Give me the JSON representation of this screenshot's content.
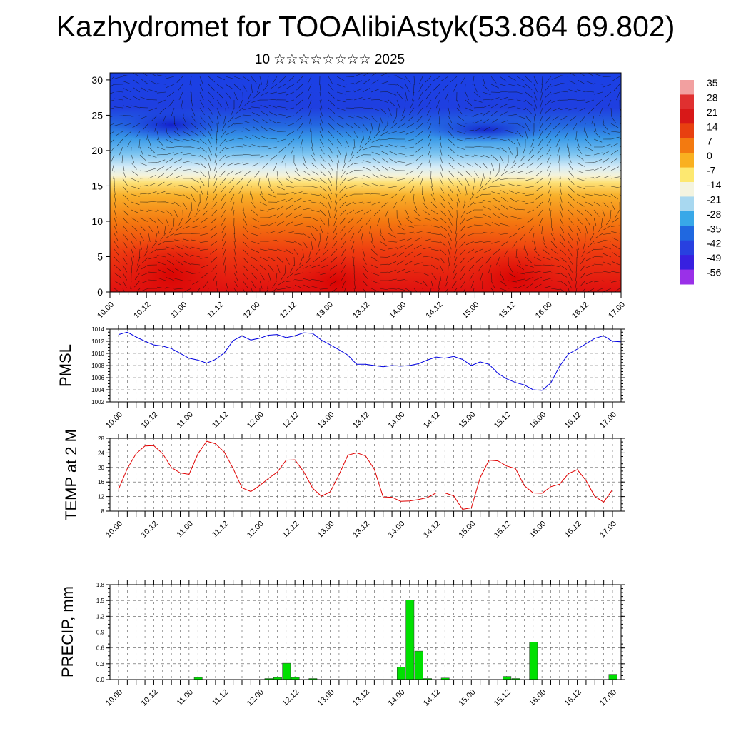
{
  "title": "Kazhydromet for TOOAlibiAstyk(53.864 69.802)",
  "subtitle": "10 ☆☆☆☆☆☆☆☆ 2025",
  "time_ticks": [
    "10.00",
    "10.12",
    "11.00",
    "11.12",
    "12.00",
    "12.12",
    "13.00",
    "13.12",
    "14.00",
    "14.12",
    "15.00",
    "15.12",
    "16.00",
    "16.12",
    "17.00"
  ],
  "chart_data": [
    {
      "type": "heatmap",
      "name": "vertical temperature cross-section with wind vectors",
      "ylim": [
        0,
        31
      ],
      "yticks": [
        0,
        5,
        10,
        15,
        20,
        25,
        30
      ],
      "colorbar": {
        "labels": [
          "35",
          "28",
          "21",
          "14",
          "7",
          "0",
          "-7",
          "-14",
          "-21",
          "-28",
          "-35",
          "-42",
          "-49",
          "-56"
        ],
        "colors": [
          "#f2a0a0",
          "#e03030",
          "#d81818",
          "#e84010",
          "#f37a10",
          "#f9b020",
          "#fde870",
          "#f4f4e0",
          "#a8d8f0",
          "#38a8e8",
          "#2068e0",
          "#2840e0",
          "#3820e0",
          "#9a30e8"
        ]
      }
    },
    {
      "type": "line",
      "ylabel": "PMSL",
      "ylim": [
        1002,
        1014
      ],
      "yticks": [
        1002,
        1004,
        1006,
        1008,
        1010,
        1012,
        1014
      ],
      "color": "#0000e0",
      "x_step_hours": 3,
      "values": [
        1013.1,
        1013.5,
        1012.7,
        1012.0,
        1011.4,
        1011.2,
        1010.8,
        1010.0,
        1009.2,
        1008.9,
        1008.4,
        1009.0,
        1010.1,
        1012.1,
        1012.9,
        1012.2,
        1012.5,
        1013.0,
        1013.1,
        1012.6,
        1012.9,
        1013.4,
        1013.3,
        1012.2,
        1011.4,
        1010.6,
        1009.7,
        1008.2,
        1008.2,
        1008.0,
        1007.8,
        1008.0,
        1007.9,
        1008.0,
        1008.3,
        1008.9,
        1009.4,
        1009.2,
        1009.5,
        1009.0,
        1008.0,
        1008.6,
        1008.2,
        1006.7,
        1005.8,
        1005.2,
        1004.8,
        1004.0,
        1003.9,
        1005.1,
        1007.9,
        1009.9,
        1010.7,
        1011.6,
        1012.5,
        1012.9,
        1012.0,
        1011.9
      ]
    },
    {
      "type": "line",
      "ylabel": "TEMP at 2 M",
      "ylim": [
        8,
        28
      ],
      "yticks": [
        8,
        12,
        16,
        20,
        24,
        28
      ],
      "color": "#e00000",
      "x_step_hours": 3,
      "values": [
        14.0,
        19.7,
        23.8,
        25.9,
        26.0,
        23.8,
        20.0,
        18.5,
        18.1,
        23.7,
        27.2,
        26.5,
        24.2,
        19.7,
        14.4,
        13.4,
        15.0,
        17.0,
        18.7,
        22.0,
        22.1,
        18.8,
        14.3,
        12.1,
        13.3,
        18.0,
        23.4,
        24.0,
        23.2,
        19.5,
        11.9,
        11.8,
        10.7,
        10.8,
        11.2,
        11.7,
        13.0,
        13.0,
        12.2,
        8.5,
        8.9,
        17.2,
        22.0,
        21.8,
        20.4,
        19.7,
        15.0,
        13.0,
        12.9,
        14.7,
        15.4,
        18.3,
        19.4,
        16.4,
        12.0,
        10.5,
        13.9
      ]
    },
    {
      "type": "bar",
      "ylabel": "PRECIP, mm",
      "ylim": [
        0,
        1.8
      ],
      "yticks": [
        "0.0",
        "0.3",
        "0.6",
        "0.9",
        "1.2",
        "1.5",
        "1.8"
      ],
      "color": "#00e000",
      "x_step_hours": 3,
      "values": [
        0,
        0,
        0,
        0,
        0,
        0,
        0,
        0,
        0,
        0.04,
        0,
        0,
        0,
        0,
        0,
        0,
        0,
        0.02,
        0.04,
        0.31,
        0.04,
        0,
        0.02,
        0,
        0,
        0,
        0,
        0,
        0,
        0,
        0,
        0,
        0.24,
        1.51,
        0.54,
        0.02,
        0,
        0.03,
        0,
        0,
        0,
        0,
        0,
        0,
        0.06,
        0.02,
        0,
        0.71,
        0,
        0,
        0,
        0,
        0,
        0,
        0,
        0,
        0.1
      ]
    }
  ]
}
